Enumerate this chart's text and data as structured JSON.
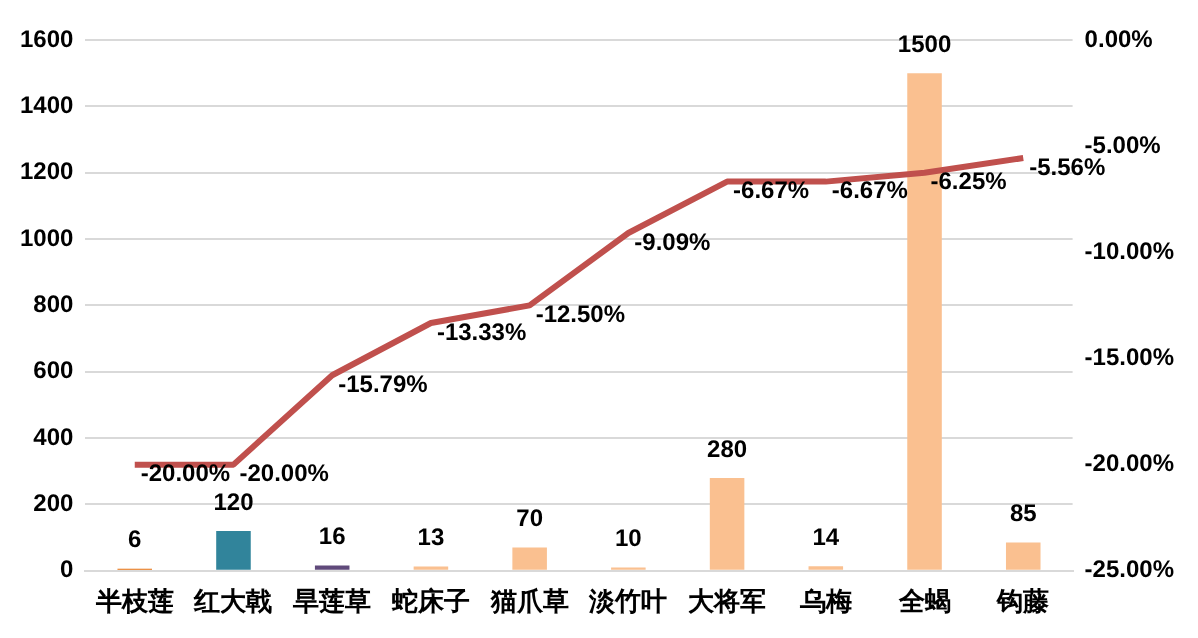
{
  "chart_data": {
    "type": "bar",
    "categories": [
      "半枝莲",
      "红大戟",
      "旱莲草",
      "蛇床子",
      "猫爪草",
      "淡竹叶",
      "大将军",
      "乌梅",
      "全蝎",
      "钩藤"
    ],
    "series": [
      {
        "colors": [
          "#e46c0a",
          "#31849b",
          "#604a7b",
          "#fac090",
          "#fac090",
          "#fac090",
          "#fac090",
          "#fac090",
          "#fac090",
          "#fac090"
        ],
        "values": [
          6,
          120,
          16,
          13,
          70,
          10,
          280,
          14,
          1500,
          85
        ],
        "value_labels": [
          "6",
          "120",
          "16",
          "13",
          "70",
          "10",
          "280",
          "14",
          "1500",
          "85"
        ]
      },
      {
        "type": "line",
        "axis": "y2",
        "color": "#c0504d",
        "values": [
          -20.0,
          -20.0,
          -15.79,
          -13.33,
          -12.5,
          -9.09,
          -6.67,
          -6.67,
          -6.25,
          -5.56
        ],
        "value_labels": [
          "-20.00%",
          "-20.00%",
          "-15.79%",
          "-13.33%",
          "-12.50%",
          "-9.09%",
          "-6.67%",
          "-6.67%",
          "-6.25%",
          "-5.56%"
        ]
      }
    ],
    "ylim": [
      0,
      1600
    ],
    "yticks": [
      0,
      200,
      400,
      600,
      800,
      1000,
      1200,
      1400,
      1600
    ],
    "y2lim": [
      -25,
      0
    ],
    "y2ticks": [
      {
        "value": -25,
        "label": "-25.00%"
      },
      {
        "value": -20,
        "label": "-20.00%"
      },
      {
        "value": -15,
        "label": "-15.00%"
      },
      {
        "value": -10,
        "label": "-10.00%"
      },
      {
        "value": -5,
        "label": "-5.00%"
      },
      {
        "value": 0,
        "label": "0.00%"
      }
    ],
    "grid": "y",
    "legend": false,
    "marker": "none",
    "line_style": "solid"
  }
}
